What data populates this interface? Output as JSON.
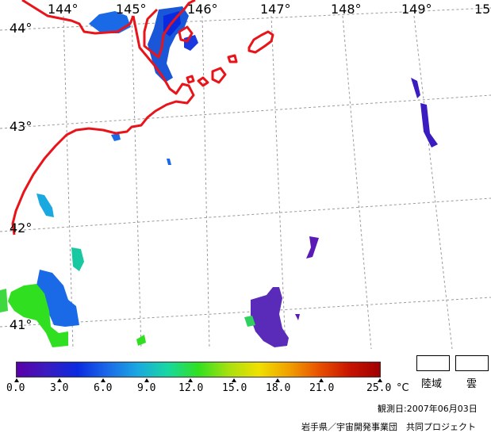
{
  "map": {
    "longitude_labels": [
      "144°",
      "145°",
      "146°",
      "147°",
      "148°",
      "149°",
      "15"
    ],
    "latitude_labels": [
      "44°",
      "43°",
      "42°",
      "41°"
    ],
    "coastline_color": "#e8141a",
    "grid_color": "#9a9a9a"
  },
  "colorbar": {
    "ticks": [
      "0.0",
      "3.0",
      "6.0",
      "9.0",
      "12.0",
      "15.0",
      "18.0",
      "21.0",
      "25.0"
    ],
    "unit": "°C",
    "colors": [
      "#5a00a8",
      "#3a1cc0",
      "#0a2ae0",
      "#1a6ae8",
      "#1aa8e0",
      "#18d8a0",
      "#30e020",
      "#a8e010",
      "#f0e000",
      "#f0a000",
      "#e85000",
      "#c81400",
      "#a00000"
    ]
  },
  "legend": {
    "land_label": "陸域",
    "cloud_label": "雲"
  },
  "footer": {
    "observation_date": "観測日:2007年06月03日",
    "credit": "岩手県／宇宙開発事業団　共同プロジェクト"
  }
}
